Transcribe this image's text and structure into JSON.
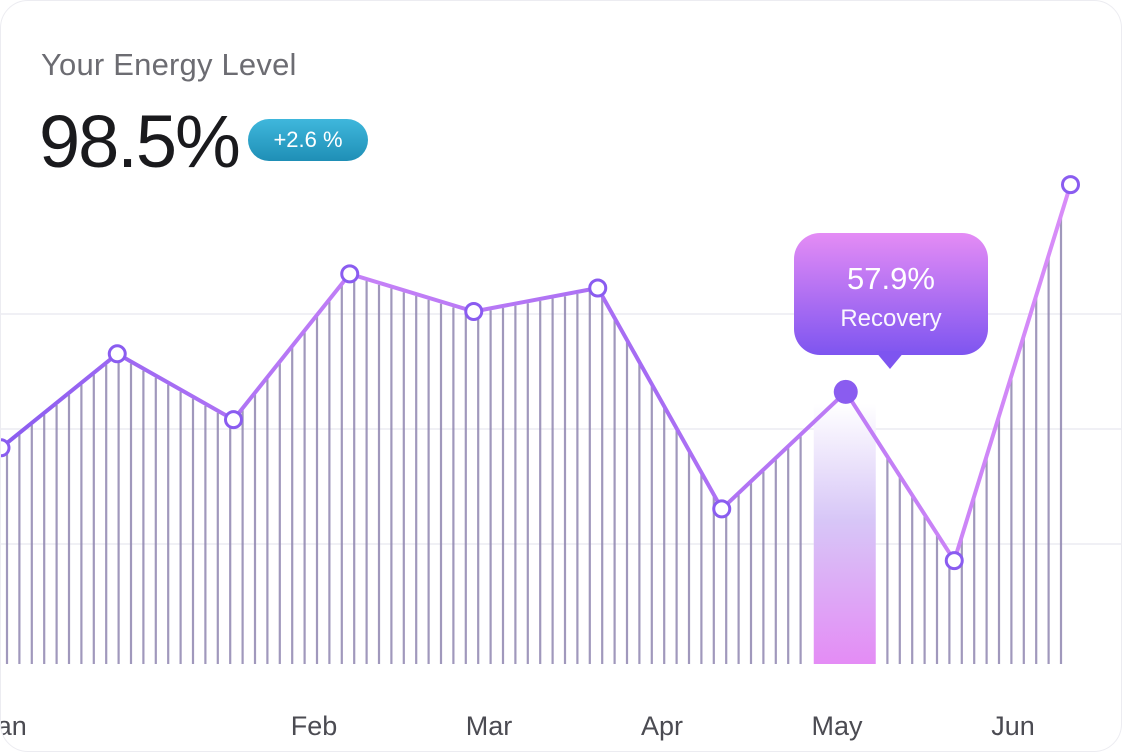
{
  "header": {
    "title": "Your Energy Level",
    "value": "98.5%",
    "change_badge": "+2.6 %"
  },
  "tooltip": {
    "value": "57.9%",
    "label": "Recovery"
  },
  "colors": {
    "line": "#8a5cf0",
    "line_light": "#d58cf7",
    "bars": "#8f86b0",
    "badge": "#2aa3cb",
    "highlight": "#e48cf5"
  },
  "chart_data": {
    "type": "line",
    "title": "Your Energy Level",
    "x_tick_labels": [
      "Jan",
      "Feb",
      "Mar",
      "Apr",
      "May",
      "Jun"
    ],
    "ylim": [
      0,
      100
    ],
    "grid": true,
    "series": [
      {
        "points": [
          {
            "x": "2024-01-01",
            "y": 46
          },
          {
            "x": "2024-01-16",
            "y": 66
          },
          {
            "x": "2024-01-31",
            "y": 52
          },
          {
            "x": "2024-02-15",
            "y": 83
          },
          {
            "x": "2024-03-02",
            "y": 75
          },
          {
            "x": "2024-03-18",
            "y": 80
          },
          {
            "x": "2024-04-03",
            "y": 33
          },
          {
            "x": "2024-04-19",
            "y": 57.9
          },
          {
            "x": "2024-05-03",
            "y": 22
          },
          {
            "x": "2024-05-18",
            "y": 102
          }
        ]
      }
    ],
    "highlight": {
      "x": "2024-04-19",
      "y": 57.9,
      "label": "Recovery"
    }
  }
}
